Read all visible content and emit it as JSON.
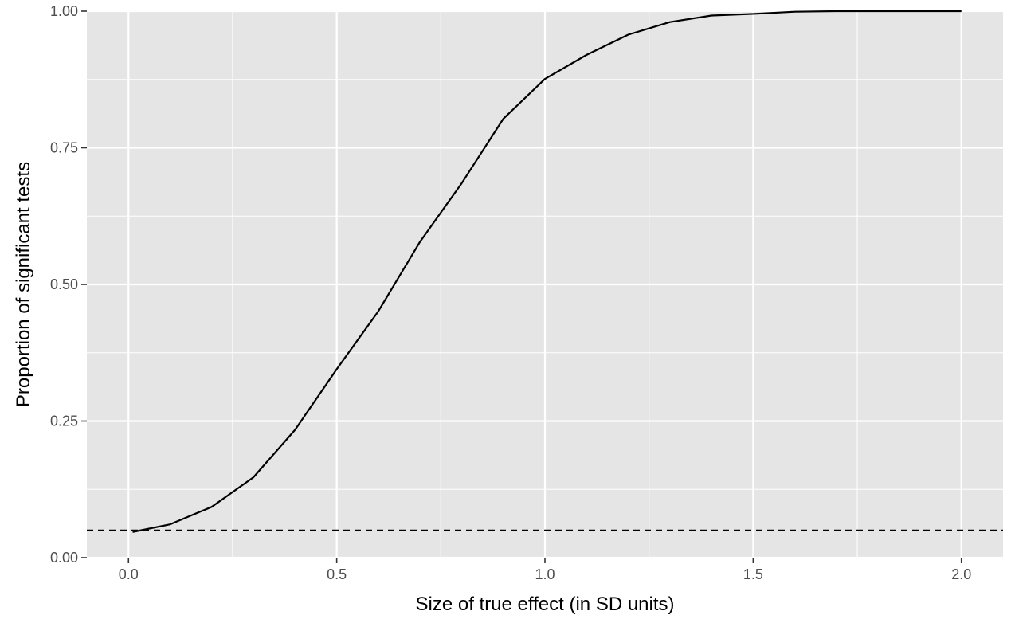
{
  "chart_data": {
    "type": "line",
    "title": "",
    "xlabel": "Size of true effect (in SD units)",
    "ylabel": "Proportion of significant tests",
    "xlim": [
      -0.1,
      2.1
    ],
    "ylim": [
      0.0,
      1.0
    ],
    "x_ticks": [
      0.0,
      0.5,
      1.0,
      1.5,
      2.0
    ],
    "x_tick_labels": [
      "0.0",
      "0.5",
      "1.0",
      "1.5",
      "2.0"
    ],
    "y_ticks": [
      0.0,
      0.25,
      0.5,
      0.75,
      1.0
    ],
    "y_tick_labels": [
      "0.00",
      "0.25",
      "0.50",
      "0.75",
      "1.00"
    ],
    "grid": true,
    "series": [
      {
        "style": "solid",
        "color": "#000000",
        "x": [
          0.01,
          0.1,
          0.2,
          0.3,
          0.4,
          0.5,
          0.6,
          0.7,
          0.8,
          0.9,
          1.0,
          1.1,
          1.2,
          1.3,
          1.4,
          1.5,
          1.6,
          1.7,
          1.8,
          1.9,
          2.0
        ],
        "values": [
          0.047,
          0.061,
          0.093,
          0.147,
          0.234,
          0.345,
          0.451,
          0.578,
          0.685,
          0.803,
          0.876,
          0.92,
          0.957,
          0.98,
          0.992,
          0.995,
          0.999,
          1.0,
          1.0,
          1.0,
          1.0
        ]
      }
    ],
    "reference_lines": [
      {
        "orientation": "horizontal",
        "y": 0.05,
        "style": "dashed",
        "color": "#000000"
      }
    ],
    "colors": {
      "panel_background": "#e5e5e5",
      "grid": "#ffffff",
      "line": "#000000"
    }
  }
}
